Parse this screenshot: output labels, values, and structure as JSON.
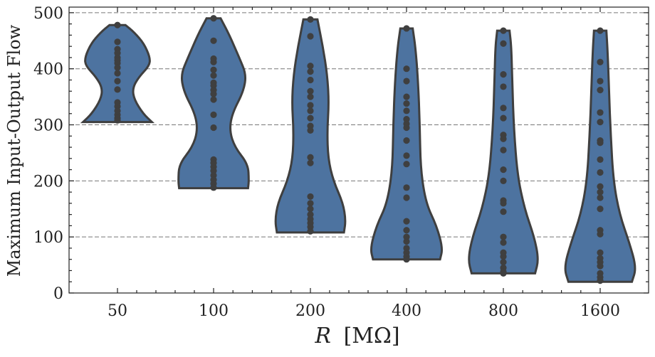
{
  "chart_data": {
    "type": "violin",
    "xlabel_var": "R",
    "xlabel_unit": "[MΩ]",
    "ylabel": "Maximum Input-Output Flow",
    "ylim": [
      0,
      510
    ],
    "yticks": [
      0,
      100,
      200,
      300,
      400,
      500
    ],
    "grid": true,
    "categories": [
      "50",
      "100",
      "200",
      "400",
      "800",
      "1600"
    ],
    "series": [
      {
        "category": "50",
        "min": 305,
        "max": 478,
        "points": [
          478,
          448,
          435,
          428,
          420,
          415,
          410,
          402,
          392,
          378,
          363,
          340,
          333,
          325,
          318,
          312,
          308
        ],
        "profile": [
          [
            305,
            0.78
          ],
          [
            320,
            0.58
          ],
          [
            345,
            0.38
          ],
          [
            365,
            0.34
          ],
          [
            385,
            0.48
          ],
          [
            405,
            0.72
          ],
          [
            420,
            0.74
          ],
          [
            445,
            0.6
          ],
          [
            465,
            0.38
          ],
          [
            478,
            0.18
          ]
        ]
      },
      {
        "category": "100",
        "min": 187,
        "max": 490,
        "points": [
          490,
          450,
          418,
          412,
          398,
          388,
          375,
          370,
          362,
          355,
          345,
          318,
          295,
          238,
          232,
          225,
          218,
          210,
          202,
          195,
          188
        ],
        "profile": [
          [
            187,
            0.78
          ],
          [
            200,
            0.8
          ],
          [
            230,
            0.78
          ],
          [
            260,
            0.48
          ],
          [
            290,
            0.36
          ],
          [
            320,
            0.42
          ],
          [
            360,
            0.68
          ],
          [
            390,
            0.74
          ],
          [
            420,
            0.58
          ],
          [
            460,
            0.36
          ],
          [
            490,
            0.16
          ]
        ]
      },
      {
        "category": "200",
        "min": 108,
        "max": 488,
        "points": [
          488,
          458,
          405,
          395,
          380,
          360,
          350,
          335,
          325,
          312,
          298,
          290,
          242,
          232,
          172,
          160,
          150,
          140,
          132,
          125,
          118,
          110
        ],
        "profile": [
          [
            108,
            0.76
          ],
          [
            130,
            0.8
          ],
          [
            160,
            0.74
          ],
          [
            200,
            0.52
          ],
          [
            240,
            0.4
          ],
          [
            290,
            0.38
          ],
          [
            340,
            0.42
          ],
          [
            390,
            0.38
          ],
          [
            440,
            0.28
          ],
          [
            488,
            0.16
          ]
        ]
      },
      {
        "category": "400",
        "min": 60,
        "max": 472,
        "points": [
          472,
          400,
          378,
          350,
          338,
          325,
          310,
          302,
          295,
          272,
          245,
          230,
          188,
          170,
          128,
          112,
          100,
          92,
          80,
          72,
          65,
          60
        ],
        "profile": [
          [
            60,
            0.76
          ],
          [
            80,
            0.82
          ],
          [
            120,
            0.68
          ],
          [
            160,
            0.44
          ],
          [
            220,
            0.32
          ],
          [
            300,
            0.3
          ],
          [
            380,
            0.26
          ],
          [
            440,
            0.2
          ],
          [
            472,
            0.14
          ]
        ]
      },
      {
        "category": "800",
        "min": 35,
        "max": 468,
        "points": [
          468,
          445,
          390,
          368,
          330,
          312,
          282,
          275,
          255,
          220,
          200,
          165,
          160,
          145,
          100,
          90,
          72,
          65,
          55,
          45,
          38,
          35
        ],
        "profile": [
          [
            35,
            0.72
          ],
          [
            60,
            0.8
          ],
          [
            100,
            0.7
          ],
          [
            150,
            0.48
          ],
          [
            210,
            0.32
          ],
          [
            290,
            0.24
          ],
          [
            380,
            0.2
          ],
          [
            440,
            0.18
          ],
          [
            468,
            0.14
          ]
        ]
      },
      {
        "category": "1600",
        "min": 20,
        "max": 468,
        "points": [
          468,
          412,
          378,
          362,
          322,
          305,
          272,
          268,
          238,
          215,
          190,
          180,
          170,
          150,
          112,
          105,
          72,
          62,
          55,
          48,
          35,
          28,
          22
        ],
        "profile": [
          [
            20,
            0.72
          ],
          [
            45,
            0.82
          ],
          [
            90,
            0.66
          ],
          [
            140,
            0.44
          ],
          [
            200,
            0.3
          ],
          [
            280,
            0.24
          ],
          [
            360,
            0.2
          ],
          [
            430,
            0.17
          ],
          [
            468,
            0.14
          ]
        ]
      }
    ]
  }
}
